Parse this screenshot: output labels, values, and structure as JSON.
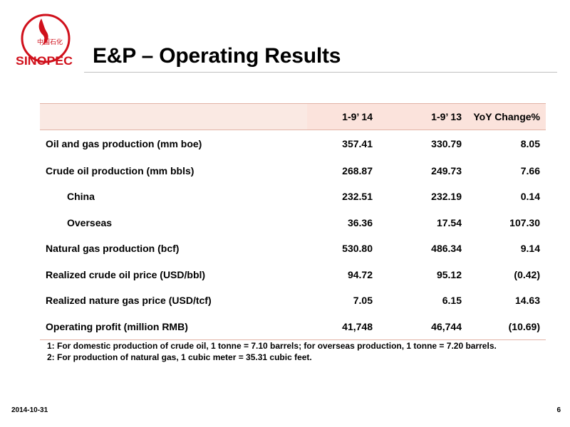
{
  "brand": {
    "logo_text_cn": "中国石化",
    "logo_wordmark": "SINOPEC",
    "color_red": "#d0101b"
  },
  "header": {
    "title": "E&P – Operating Results"
  },
  "table": {
    "columns": [
      "",
      "1-9’ 14",
      "1-9’ 13",
      "YoY Change%"
    ],
    "rows": [
      {
        "label": "Oil and gas production (mm boe)",
        "v14": "357.41",
        "v13": "330.79",
        "yoy": "8.05"
      },
      {
        "label": "Crude oil production (mm bbls)",
        "v14": "268.87",
        "v13": "249.73",
        "yoy": "7.66"
      },
      {
        "label": "China",
        "v14": "232.51",
        "v13": "232.19",
        "yoy": "0.14"
      },
      {
        "label": "Overseas",
        "v14": "36.36",
        "v13": "17.54",
        "yoy": "107.30"
      },
      {
        "label": "Natural gas production (bcf)",
        "v14": "530.80",
        "v13": "486.34",
        "yoy": "9.14"
      },
      {
        "label": "Realized crude oil price (USD/bbl)",
        "v14": "94.72",
        "v13": "95.12",
        "yoy": "(0.42)"
      },
      {
        "label": "Realized nature gas price (USD/tcf)",
        "v14": "7.05",
        "v13": "6.15",
        "yoy": "14.63"
      },
      {
        "label": "Operating profit (million RMB)",
        "v14": "41,748",
        "v13": "46,744",
        "yoy": "(10.69)"
      }
    ]
  },
  "notes": [
    "1: For domestic production of crude oil, 1 tonne = 7.10 barrels; for overseas production, 1 tonne = 7.20 barrels.",
    "2: For production of natural gas, 1 cubic meter = 35.31 cubic feet."
  ],
  "footer": {
    "date": "2014-10-31",
    "page": "6"
  }
}
